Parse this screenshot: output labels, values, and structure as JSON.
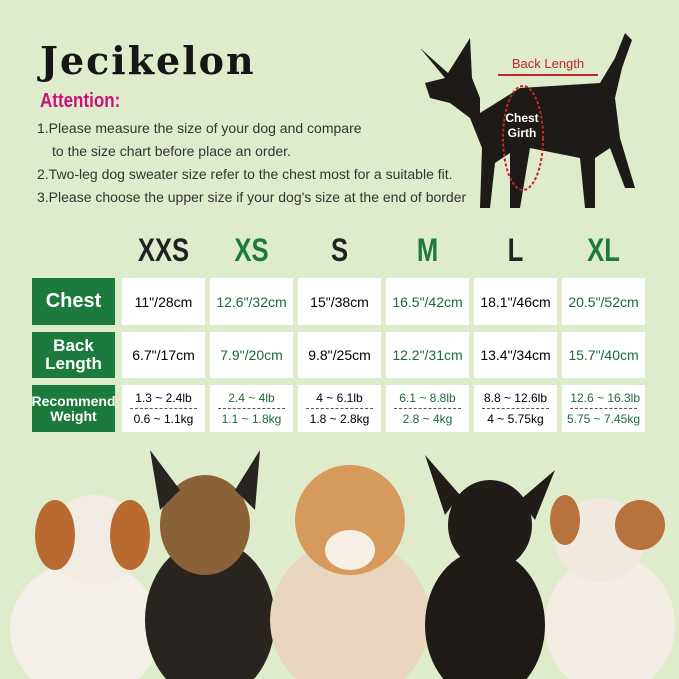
{
  "brand": "Jecikelon",
  "attention": "Attention:",
  "notes": [
    "1.Please measure the size of your dog and compare",
    "to the size chart before place an order.",
    "2.Two-leg dog sweater size refer to the chest most for a suitable fit.",
    "3.Please choose the upper size if your dog's size at the end of border"
  ],
  "diagram": {
    "back_length": "Back Length",
    "chest_girth_1": "Chest",
    "chest_girth_2": "Girth"
  },
  "colors": {
    "background": "#dfeccb",
    "accent_green": "#1c7a3c",
    "attention": "#c8137a",
    "measure_line": "#c0262c"
  },
  "table": {
    "sizes": [
      "XXS",
      "XS",
      "S",
      "M",
      "L",
      "XL"
    ],
    "rows": [
      {
        "label": "Chest",
        "values": [
          "11\"/28cm",
          "12.6\"/32cm",
          "15\"/38cm",
          "16.5\"/42cm",
          "18.1\"/46cm",
          "20.5\"/52cm"
        ]
      },
      {
        "label1": "Back",
        "label2": "Length",
        "values": [
          "6.7\"/17cm",
          "7.9\"/20cm",
          "9.8\"/25cm",
          "12.2\"/31cm",
          "13.4\"/34cm",
          "15.7\"/40cm"
        ]
      },
      {
        "label1": "Recommend",
        "label2": "Weight",
        "lb": [
          "1.3 ~ 2.4lb",
          "2.4 ~ 4lb",
          "4 ~ 6.1lb",
          "6.1 ~ 8.8lb",
          "8.8 ~ 12.6lb",
          "12.6 ~ 16.3lb"
        ],
        "kg": [
          "0.6 ~ 1.1kg",
          "1.1 ~ 1.8kg",
          "1.8 ~ 2.8kg",
          "2.8 ~ 4kg",
          "4 ~ 5.75kg",
          "5.75 ~ 7.45kg"
        ]
      }
    ]
  }
}
